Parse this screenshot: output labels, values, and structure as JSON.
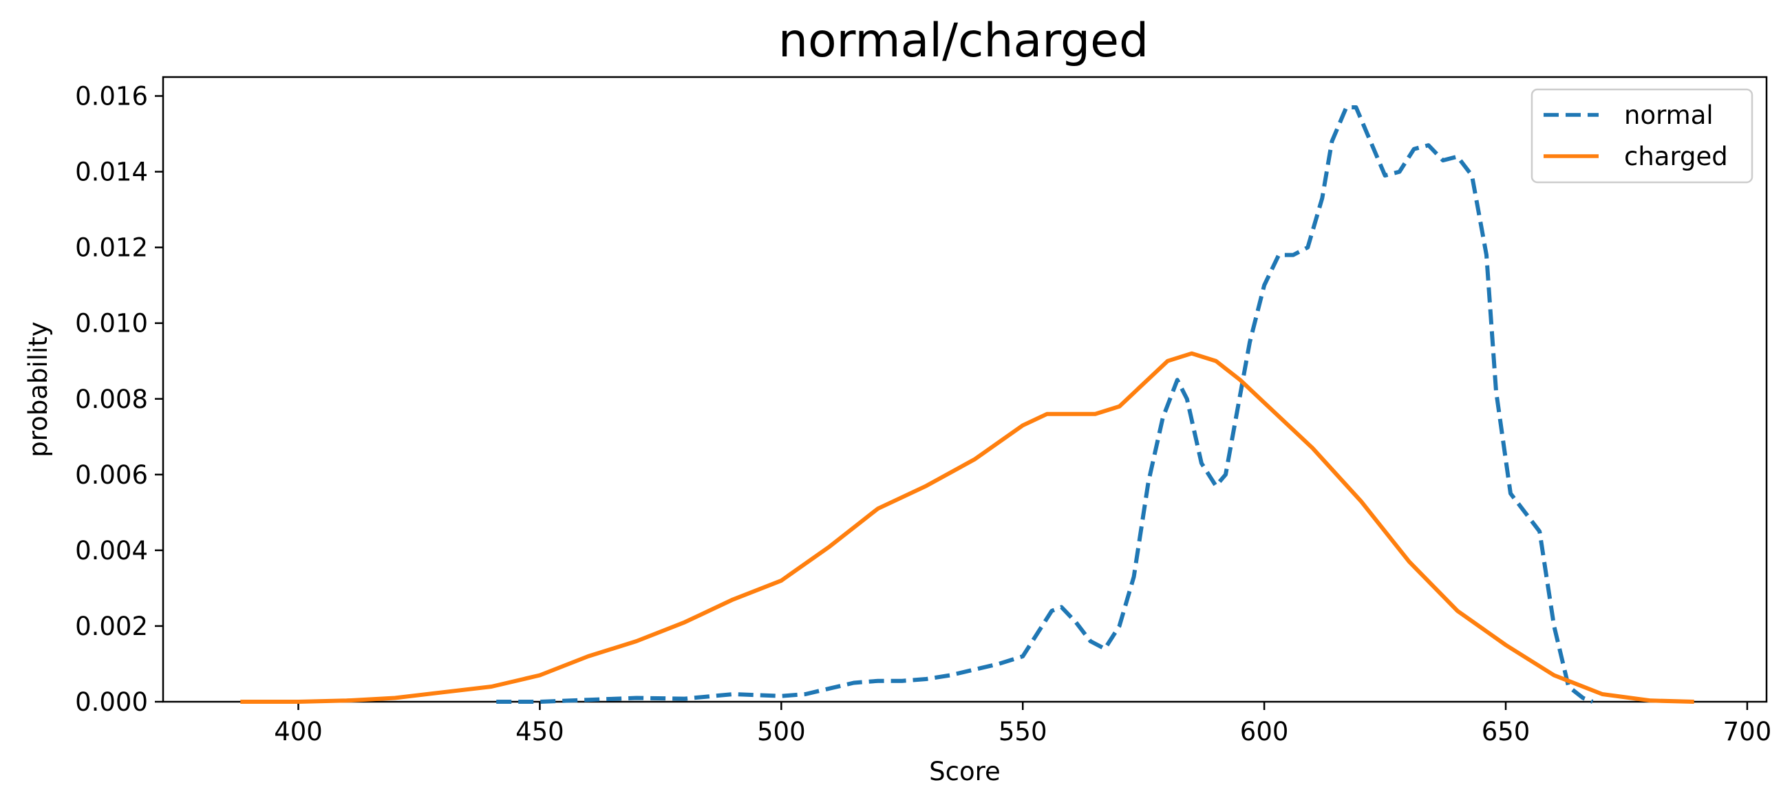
{
  "chart_data": {
    "type": "line",
    "title": "normal/charged",
    "xlabel": "Score",
    "ylabel": "probability",
    "xlim": [
      372,
      704
    ],
    "ylim": [
      0,
      0.0165
    ],
    "xticks": [
      400,
      450,
      500,
      550,
      600,
      650,
      700
    ],
    "xtick_labels": [
      "400",
      "450",
      "500",
      "550",
      "600",
      "650",
      "700"
    ],
    "yticks": [
      0,
      0.002,
      0.004,
      0.006,
      0.008,
      0.01,
      0.012,
      0.014,
      0.016
    ],
    "ytick_labels": [
      "0.000",
      "0.002",
      "0.004",
      "0.006",
      "0.008",
      "0.010",
      "0.012",
      "0.014",
      "0.016"
    ],
    "grid": false,
    "legend_position": "top-right",
    "series": [
      {
        "name": "normal",
        "color": "#1f77b4",
        "style": "dashed",
        "x": [
          441,
          450,
          460,
          470,
          480,
          490,
          500,
          505,
          510,
          515,
          520,
          525,
          530,
          535,
          540,
          545,
          550,
          553,
          556,
          558,
          561,
          564,
          567,
          570,
          573,
          576,
          579,
          582,
          584,
          587,
          590,
          592,
          594,
          597,
          600,
          603,
          606,
          609,
          612,
          614,
          617,
          619,
          622,
          625,
          628,
          631,
          634,
          637,
          640,
          643,
          646,
          648,
          651,
          654,
          657,
          660,
          663,
          666,
          668
        ],
        "y": [
          0.0,
          0.0,
          5e-05,
          0.0001,
          8e-05,
          0.0002,
          0.00015,
          0.0002,
          0.00035,
          0.0005,
          0.00055,
          0.00055,
          0.0006,
          0.0007,
          0.00085,
          0.001,
          0.0012,
          0.0018,
          0.0024,
          0.0025,
          0.0021,
          0.0016,
          0.0014,
          0.002,
          0.0033,
          0.0058,
          0.0075,
          0.0085,
          0.008,
          0.0063,
          0.0057,
          0.006,
          0.0074,
          0.0095,
          0.011,
          0.0118,
          0.0118,
          0.012,
          0.0133,
          0.0148,
          0.0157,
          0.0157,
          0.0148,
          0.0139,
          0.014,
          0.0146,
          0.0147,
          0.0143,
          0.0144,
          0.0139,
          0.0118,
          0.0082,
          0.0055,
          0.005,
          0.0045,
          0.002,
          0.0004,
          0.0001,
          0.0
        ]
      },
      {
        "name": "charged",
        "color": "#ff7f0e",
        "style": "solid",
        "x": [
          388,
          400,
          410,
          420,
          430,
          440,
          450,
          460,
          470,
          480,
          490,
          500,
          510,
          520,
          530,
          540,
          550,
          555,
          560,
          565,
          570,
          575,
          580,
          585,
          590,
          595,
          600,
          610,
          620,
          630,
          640,
          650,
          660,
          670,
          680,
          689
        ],
        "y": [
          0.0,
          0.0,
          3e-05,
          0.0001,
          0.00025,
          0.0004,
          0.0007,
          0.0012,
          0.0016,
          0.0021,
          0.0027,
          0.0032,
          0.0041,
          0.0051,
          0.0057,
          0.0064,
          0.0073,
          0.0076,
          0.0076,
          0.0076,
          0.0078,
          0.0084,
          0.009,
          0.0092,
          0.009,
          0.0085,
          0.0079,
          0.0067,
          0.0053,
          0.0037,
          0.0024,
          0.0015,
          0.0007,
          0.0002,
          3e-05,
          0.0
        ]
      }
    ]
  }
}
